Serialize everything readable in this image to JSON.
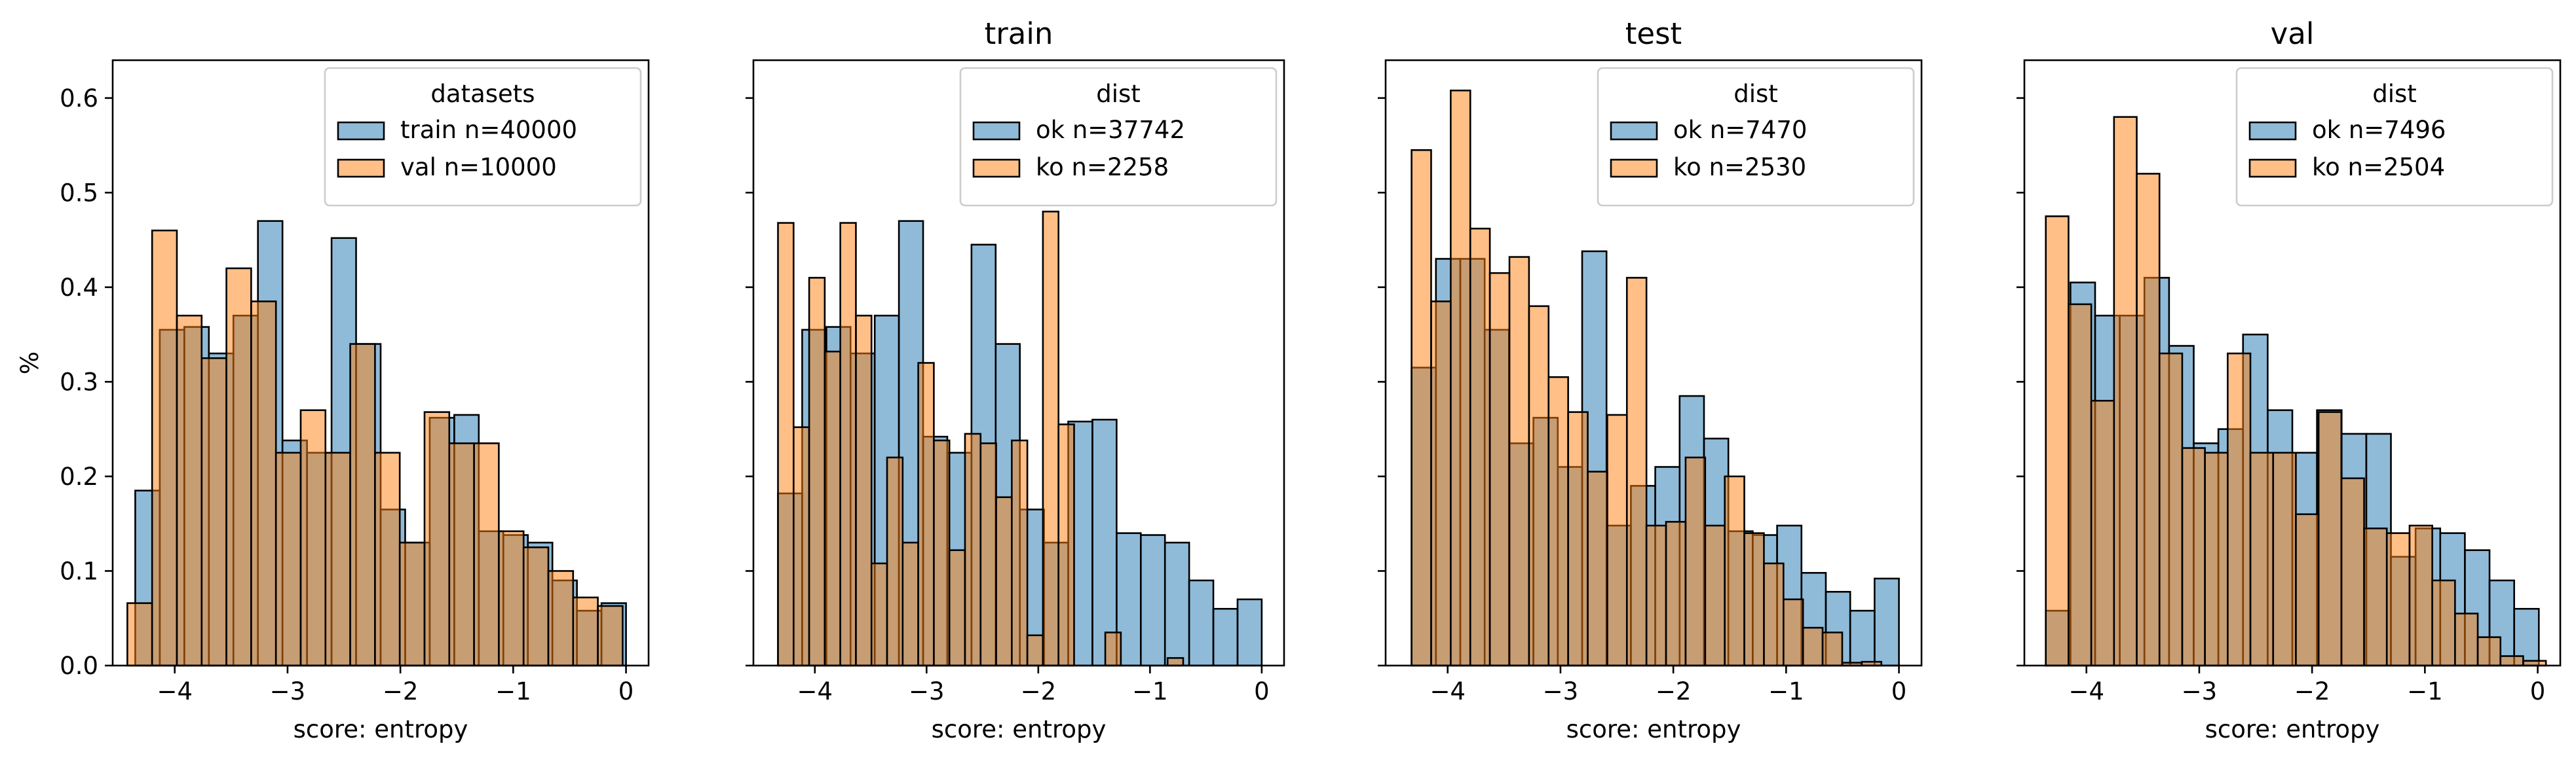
{
  "chart_data": [
    {
      "type": "histogram",
      "title": "",
      "xlabel": "score: entropy",
      "ylabel": "%",
      "xlim": [
        -4.55,
        0.2
      ],
      "ylim": [
        0,
        0.64
      ],
      "xticks": [
        -4,
        -3,
        -2,
        -1,
        0
      ],
      "xtick_labels": [
        "−4",
        "−3",
        "−2",
        "−1",
        "0"
      ],
      "yticks": [
        0,
        0.1,
        0.2,
        0.3,
        0.4,
        0.5,
        0.6
      ],
      "ytick_labels": [
        "0.0",
        "0.1",
        "0.2",
        "0.3",
        "0.4",
        "0.5",
        "0.6"
      ],
      "show_y_tick_labels": true,
      "legend": {
        "title": "datasets",
        "position": "top-right"
      },
      "series": [
        {
          "name": "train n=40000",
          "color": "#1f77b4",
          "bin_start": -4.35,
          "bin_width": 0.2175,
          "values": [
            0.185,
            0.355,
            0.358,
            0.33,
            0.37,
            0.47,
            0.238,
            0.225,
            0.452,
            0.34,
            0.165,
            0.13,
            0.262,
            0.265,
            0.142,
            0.138,
            0.13,
            0.09,
            0.058,
            0.066
          ]
        },
        {
          "name": "val n=10000",
          "color": "#ff7f0e",
          "bin_start": -4.42,
          "bin_width": 0.2195,
          "values": [
            0.066,
            0.46,
            0.37,
            0.325,
            0.42,
            0.385,
            0.225,
            0.27,
            0.225,
            0.34,
            0.225,
            0.13,
            0.268,
            0.235,
            0.235,
            0.142,
            0.125,
            0.1,
            0.072,
            0.063
          ]
        }
      ]
    },
    {
      "type": "histogram",
      "title": "train",
      "xlabel": "score: entropy",
      "ylabel": "",
      "xlim": [
        -4.55,
        0.2
      ],
      "ylim": [
        0,
        0.64
      ],
      "xticks": [
        -4,
        -3,
        -2,
        -1,
        0
      ],
      "xtick_labels": [
        "−4",
        "−3",
        "−2",
        "−1",
        "0"
      ],
      "yticks": [
        0,
        0.1,
        0.2,
        0.3,
        0.4,
        0.5,
        0.6
      ],
      "ytick_labels": [],
      "show_y_tick_labels": false,
      "legend": {
        "title": "dist",
        "position": "top-right"
      },
      "series": [
        {
          "name": "ok n=37742",
          "color": "#1f77b4",
          "bin_start": -4.33,
          "bin_width": 0.2165,
          "values": [
            0.182,
            0.355,
            0.358,
            0.33,
            0.37,
            0.47,
            0.242,
            0.225,
            0.445,
            0.34,
            0.165,
            0.13,
            0.258,
            0.26,
            0.14,
            0.138,
            0.13,
            0.09,
            0.06,
            0.07
          ]
        },
        {
          "name": "ko n=2258",
          "color": "#ff7f0e",
          "bin_start": -4.33,
          "bin_width": 0.1395,
          "values": [
            0.468,
            0.252,
            0.41,
            0.332,
            0.468,
            0.37,
            0.108,
            0.22,
            0.13,
            0.32,
            0.238,
            0.122,
            0.245,
            0.235,
            0.178,
            0.238,
            0.032,
            0.48,
            0.255,
            0.0,
            0.0,
            0.035,
            0.0,
            0.0,
            0.0,
            0.008,
            0.0,
            0.0,
            0.0
          ]
        }
      ]
    },
    {
      "type": "histogram",
      "title": "test",
      "xlabel": "score: entropy",
      "ylabel": "",
      "xlim": [
        -4.55,
        0.2
      ],
      "ylim": [
        0,
        0.64
      ],
      "xticks": [
        -4,
        -3,
        -2,
        -1,
        0
      ],
      "xtick_labels": [
        "−4",
        "−3",
        "−2",
        "−1",
        "0"
      ],
      "yticks": [
        0,
        0.1,
        0.2,
        0.3,
        0.4,
        0.5,
        0.6
      ],
      "ytick_labels": [],
      "show_y_tick_labels": false,
      "legend": {
        "title": "dist",
        "position": "top-right"
      },
      "series": [
        {
          "name": "ok n=7470",
          "color": "#1f77b4",
          "bin_start": -4.32,
          "bin_width": 0.216,
          "values": [
            0.315,
            0.43,
            0.43,
            0.355,
            0.235,
            0.262,
            0.21,
            0.438,
            0.148,
            0.19,
            0.21,
            0.285,
            0.24,
            0.142,
            0.138,
            0.148,
            0.098,
            0.078,
            0.058,
            0.092
          ]
        },
        {
          "name": "ko n=2530",
          "color": "#ff7f0e",
          "bin_start": -4.32,
          "bin_width": 0.1735,
          "values": [
            0.545,
            0.385,
            0.608,
            0.462,
            0.415,
            0.432,
            0.38,
            0.305,
            0.268,
            0.205,
            0.265,
            0.41,
            0.148,
            0.152,
            0.22,
            0.148,
            0.2,
            0.14,
            0.108,
            0.07,
            0.04,
            0.035,
            0.003,
            0.004
          ]
        }
      ]
    },
    {
      "type": "histogram",
      "title": "val",
      "xlabel": "score: entropy",
      "ylabel": "",
      "xlim": [
        -4.55,
        0.2
      ],
      "ylim": [
        0,
        0.64
      ],
      "xticks": [
        -4,
        -3,
        -2,
        -1,
        0
      ],
      "xtick_labels": [
        "−4",
        "−3",
        "−2",
        "−1",
        "0"
      ],
      "yticks": [
        0,
        0.1,
        0.2,
        0.3,
        0.4,
        0.5,
        0.6
      ],
      "ytick_labels": [],
      "show_y_tick_labels": false,
      "legend": {
        "title": "dist",
        "position": "top-right"
      },
      "series": [
        {
          "name": "ok n=7496",
          "color": "#1f77b4",
          "bin_start": -4.36,
          "bin_width": 0.2185,
          "values": [
            0.058,
            0.405,
            0.37,
            0.37,
            0.41,
            0.338,
            0.235,
            0.25,
            0.35,
            0.27,
            0.225,
            0.27,
            0.245,
            0.245,
            0.115,
            0.145,
            0.14,
            0.122,
            0.09,
            0.06
          ]
        },
        {
          "name": "ko n=2504",
          "color": "#ff7f0e",
          "bin_start": -4.36,
          "bin_width": 0.2015,
          "values": [
            0.475,
            0.382,
            0.28,
            0.58,
            0.52,
            0.33,
            0.23,
            0.225,
            0.33,
            0.225,
            0.225,
            0.16,
            0.268,
            0.198,
            0.145,
            0.14,
            0.148,
            0.09,
            0.055,
            0.03,
            0.01,
            0.005
          ]
        }
      ]
    }
  ]
}
